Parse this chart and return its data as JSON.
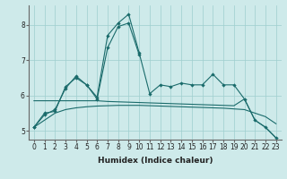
{
  "xlabel": "Humidex (Indice chaleur)",
  "x": [
    0,
    1,
    2,
    3,
    4,
    5,
    6,
    7,
    8,
    9,
    10,
    11,
    12,
    13,
    14,
    15,
    16,
    17,
    18,
    19,
    20,
    21,
    22,
    23
  ],
  "line1_y": [
    5.1,
    5.45,
    5.6,
    6.2,
    6.55,
    6.3,
    5.95,
    7.7,
    8.05,
    8.3,
    7.2,
    6.05,
    6.3,
    6.25,
    6.35,
    6.3,
    6.3,
    6.6,
    6.3,
    6.3,
    5.9,
    5.3,
    5.1,
    4.8
  ],
  "line2_x": [
    0,
    1,
    2,
    3,
    4,
    5,
    6,
    7,
    8,
    9,
    10
  ],
  "line2_y": [
    5.1,
    5.5,
    5.55,
    6.25,
    6.5,
    6.3,
    5.9,
    7.35,
    7.95,
    8.05,
    7.15
  ],
  "line3_y": [
    5.85,
    5.85,
    5.85,
    5.85,
    5.85,
    5.85,
    5.85,
    5.83,
    5.82,
    5.81,
    5.8,
    5.79,
    5.78,
    5.77,
    5.76,
    5.75,
    5.74,
    5.73,
    5.72,
    5.71,
    5.9,
    5.3,
    5.1,
    4.8
  ],
  "line4_y": [
    5.1,
    5.3,
    5.5,
    5.6,
    5.65,
    5.68,
    5.7,
    5.71,
    5.72,
    5.72,
    5.72,
    5.71,
    5.7,
    5.69,
    5.68,
    5.67,
    5.66,
    5.65,
    5.64,
    5.62,
    5.6,
    5.5,
    5.4,
    5.2
  ],
  "bg_color": "#ceeaea",
  "grid_color": "#9ecece",
  "line_color": "#1a6b6b",
  "ylim_min": 4.75,
  "ylim_max": 8.55,
  "yticks": [
    5,
    6,
    7,
    8
  ],
  "xlim_min": -0.5,
  "xlim_max": 23.5,
  "tick_fontsize": 5.5,
  "label_fontsize": 6.5
}
